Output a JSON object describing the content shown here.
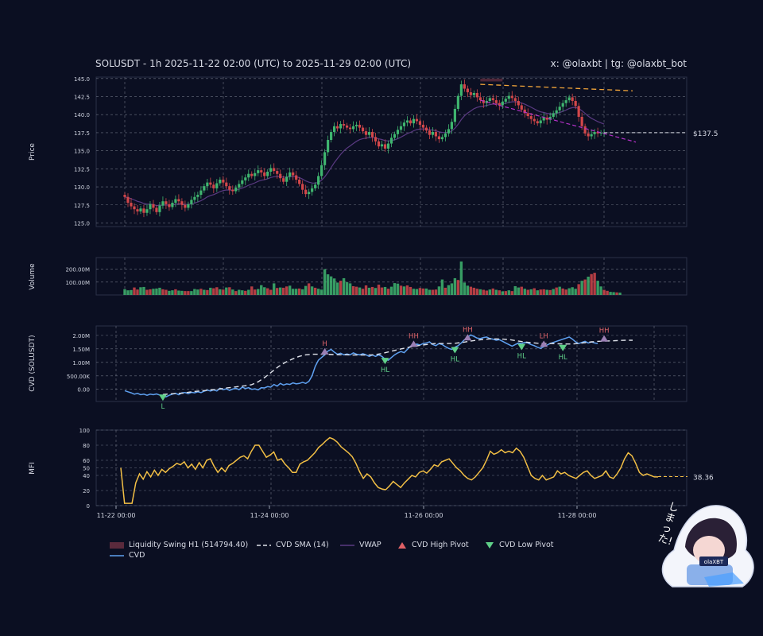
{
  "header": {
    "title": "SOLUSDT - 1h 2025-11-22 02:00 (UTC) to 2025-11-29 02:00 (UTC)",
    "handle": "x: @olaxbt | tg: @olaxbt_bot"
  },
  "colors": {
    "bg": "#0b0f22",
    "grid": "#6b7080",
    "up": "#3fb56f",
    "down": "#d2474a",
    "cvd": "#5ea0f0",
    "sma": "#dfe2ea",
    "vwap": "#5a3a82",
    "mfi": "#f2bf45",
    "resistance": "#f2a53a",
    "support": "#b431c8",
    "swing_zone": "#5a2a3c"
  },
  "chart_data": [
    {
      "type": "candlestick",
      "panel": "price",
      "ylabel": "Price",
      "ylim": [
        124.5,
        145.2
      ],
      "yticks": [
        "145.0",
        "142.5",
        "140.0",
        "137.5",
        "135.0",
        "132.5",
        "130.0",
        "127.5",
        "125.0"
      ],
      "last_price_label": "$137.5",
      "x_range_hours": [
        0,
        168
      ],
      "series_close": [
        128.6,
        127.8,
        127.3,
        126.9,
        126.6,
        127.0,
        126.4,
        126.9,
        127.6,
        127.1,
        126.5,
        127.4,
        128.0,
        127.6,
        127.2,
        127.8,
        128.3,
        128.0,
        127.5,
        127.1,
        127.6,
        128.2,
        128.6,
        128.9,
        129.5,
        130.1,
        130.6,
        130.3,
        129.8,
        130.5,
        131.0,
        130.6,
        130.1,
        129.6,
        129.4,
        129.9,
        130.4,
        130.9,
        131.3,
        131.8,
        131.5,
        131.9,
        132.3,
        132.0,
        131.5,
        132.1,
        132.6,
        132.2,
        131.8,
        131.2,
        130.7,
        131.4,
        132.0,
        131.6,
        131.0,
        130.4,
        129.6,
        129.0,
        129.3,
        129.8,
        130.3,
        131.5,
        133.0,
        134.8,
        136.5,
        137.6,
        138.4,
        138.1,
        138.7,
        138.5,
        138.2,
        138.0,
        138.4,
        138.6,
        138.2,
        137.7,
        137.2,
        137.6,
        136.9,
        136.3,
        135.6,
        135.9,
        135.3,
        136.0,
        136.8,
        137.3,
        137.9,
        138.4,
        138.9,
        139.2,
        138.8,
        139.4,
        139.1,
        138.6,
        138.2,
        137.8,
        137.2,
        137.6,
        137.0,
        136.6,
        136.9,
        137.4,
        138.0,
        139.0,
        140.8,
        142.6,
        144.2,
        143.6,
        143.1,
        142.7,
        143.0,
        142.4,
        142.0,
        141.6,
        141.9,
        142.3,
        142.0,
        141.6,
        141.3,
        141.8,
        142.2,
        142.6,
        142.3,
        141.9,
        141.3,
        140.7,
        140.2,
        139.8,
        139.4,
        139.1,
        138.8,
        139.2,
        139.6,
        139.3,
        139.7,
        140.2,
        140.6,
        141.1,
        141.6,
        142.0,
        142.4,
        141.9,
        141.2,
        139.7,
        138.4,
        137.4,
        137.0,
        137.3,
        137.6,
        137.4,
        137.5,
        137.5
      ],
      "annotations": {
        "resistance": {
          "start": [
            112,
            144.2
          ],
          "end": [
            160,
            143.3
          ]
        },
        "support": {
          "start": [
            112,
            142.0
          ],
          "end": [
            161,
            136.2
          ]
        },
        "swing_zone": {
          "x": [
            112,
            119
          ],
          "y": [
            144.6,
            145.0
          ]
        }
      }
    },
    {
      "type": "bar",
      "panel": "volume",
      "ylabel": "Volume",
      "yticks": [
        "200.00M",
        "100.00M"
      ],
      "ylim": [
        0,
        290
      ],
      "values_m": [
        45,
        36,
        38,
        58,
        42,
        60,
        62,
        40,
        44,
        48,
        50,
        56,
        44,
        40,
        32,
        36,
        44,
        34,
        32,
        30,
        30,
        30,
        46,
        42,
        48,
        40,
        38,
        56,
        52,
        60,
        44,
        42,
        58,
        60,
        42,
        30,
        40,
        36,
        32,
        40,
        66,
        42,
        46,
        76,
        60,
        52,
        40,
        90,
        54,
        58,
        56,
        66,
        72,
        48,
        48,
        50,
        44,
        70,
        90,
        66,
        56,
        48,
        42,
        200,
        160,
        144,
        128,
        96,
        110,
        130,
        100,
        90,
        68,
        64,
        58,
        48,
        74,
        56,
        62,
        54,
        80,
        58,
        62,
        48,
        64,
        92,
        88,
        72,
        66,
        74,
        62,
        48,
        46,
        54,
        50,
        50,
        40,
        40,
        42,
        66,
        120,
        56,
        76,
        90,
        130,
        116,
        260,
        96,
        72,
        64,
        56,
        48,
        44,
        40,
        34,
        42,
        50,
        40,
        36,
        28,
        30,
        36,
        30,
        68,
        58,
        64,
        48,
        40,
        44,
        52,
        36,
        42,
        44,
        40,
        38,
        46,
        58,
        64,
        50,
        42,
        52,
        60,
        48,
        84,
        110,
        120,
        142,
        162,
        172,
        110,
        66,
        40,
        32,
        24,
        22,
        20,
        18
      ],
      "directions": "gggrrggrrgggrrggrggrrgggrgrgrrgrgrgrggrgrrgggrrgrgrrgggrggrgrgggggggrgggrrgrrgrgrrgrgggrgrrggrrggrrggrgggrgggrrrgrrgrgrgrgrggrgrgrgrrgrgrgrrgggrgrgrrggrrggrgrgrrg"
    },
    {
      "type": "line",
      "panel": "cvd",
      "ylabel": "CVD (SOLUSDT)",
      "yticks": [
        "2.00M",
        "1.50M",
        "1.00M",
        "500.00K",
        "0.00"
      ],
      "ylim": [
        -0.45,
        2.35
      ],
      "series": [
        {
          "name": "CVD",
          "y": [
            -0.05,
            -0.09,
            -0.13,
            -0.18,
            -0.15,
            -0.2,
            -0.18,
            -0.22,
            -0.18,
            -0.2,
            -0.17,
            -0.21,
            -0.23,
            -0.28,
            -0.22,
            -0.18,
            -0.15,
            -0.2,
            -0.13,
            -0.12,
            -0.16,
            -0.11,
            -0.13,
            -0.09,
            -0.12,
            -0.07,
            -0.03,
            -0.06,
            -0.02,
            -0.06,
            0.04,
            -0.01,
            0.02,
            -0.04,
            0.01,
            0.04,
            -0.01,
            0.08,
            0.03,
            0.06,
            0.0,
            0.02,
            -0.02,
            0.06,
            0.05,
            0.1,
            0.08,
            0.18,
            0.12,
            0.22,
            0.16,
            0.2,
            0.18,
            0.24,
            0.2,
            0.22,
            0.26,
            0.22,
            0.3,
            0.5,
            0.85,
            1.08,
            1.18,
            1.28,
            1.42,
            1.48,
            1.38,
            1.3,
            1.34,
            1.28,
            1.31,
            1.28,
            1.35,
            1.3,
            1.28,
            1.32,
            1.28,
            1.22,
            1.27,
            1.22,
            1.28,
            1.22,
            1.12,
            1.08,
            1.18,
            1.28,
            1.35,
            1.4,
            1.36,
            1.48,
            1.6,
            1.62,
            1.68,
            1.64,
            1.7,
            1.72,
            1.76,
            1.66,
            1.62,
            1.7,
            1.66,
            1.58,
            1.52,
            1.48,
            1.56,
            1.62,
            1.72,
            1.84,
            1.93,
            2.02,
            1.96,
            1.9,
            1.88,
            1.92,
            1.94,
            1.88,
            1.86,
            1.82,
            1.84,
            1.78,
            1.72,
            1.66,
            1.6,
            1.66,
            1.72,
            1.7,
            1.74,
            1.72,
            1.66,
            1.62,
            1.56,
            1.52,
            1.58,
            1.64,
            1.7,
            1.74,
            1.78,
            1.82,
            1.86,
            1.9,
            1.94,
            1.86,
            1.76,
            1.7,
            1.74,
            1.78,
            1.72,
            1.76,
            1.72,
            1.7
          ]
        },
        {
          "name": "CVD SMA (14)",
          "y": [
            -0.19,
            -0.17,
            -0.15,
            -0.14,
            -0.1,
            -0.07,
            -0.05,
            -0.02,
            0.0,
            0.04,
            0.07,
            0.1,
            0.13,
            0.17,
            0.28,
            0.45,
            0.65,
            0.85,
            1.0,
            1.12,
            1.22,
            1.28,
            1.3,
            1.3,
            1.3,
            1.29,
            1.28,
            1.28,
            1.27,
            1.27,
            1.27,
            1.28,
            1.32,
            1.38,
            1.44,
            1.5,
            1.55,
            1.6,
            1.64,
            1.67,
            1.7,
            1.7,
            1.7,
            1.71,
            1.74,
            1.78,
            1.82,
            1.85,
            1.87,
            1.87,
            1.86,
            1.84,
            1.8,
            1.76,
            1.73,
            1.71,
            1.7,
            1.7,
            1.69,
            1.68,
            1.68,
            1.7,
            1.73,
            1.76,
            1.78,
            1.79,
            1.8,
            1.81,
            1.82,
            1.82
          ]
        },
        {
          "name": "CVD High Pivot",
          "points": [
            {
              "x": 63,
              "y": 1.38,
              "label": "H"
            },
            {
              "x": 91,
              "y": 1.66,
              "label": "HH"
            },
            {
              "x": 108,
              "y": 1.9,
              "label": "HH"
            },
            {
              "x": 132,
              "y": 1.66,
              "label": "LH"
            },
            {
              "x": 151,
              "y": 1.86,
              "label": "HH"
            }
          ]
        },
        {
          "name": "CVD Low Pivot",
          "points": [
            {
              "x": 12,
              "y": -0.28,
              "label": "L"
            },
            {
              "x": 82,
              "y": 1.08,
              "label": "HL"
            },
            {
              "x": 104,
              "y": 1.48,
              "label": "HL"
            },
            {
              "x": 125,
              "y": 1.6,
              "label": "HL"
            },
            {
              "x": 138,
              "y": 1.56,
              "label": "HL"
            }
          ]
        }
      ]
    },
    {
      "type": "line",
      "panel": "mfi",
      "ylabel": "MFI",
      "yticks": [
        "100",
        "80",
        "60",
        "50",
        "40",
        "20",
        "0"
      ],
      "ylim": [
        0,
        100
      ],
      "last_value_label": "38.36",
      "xticks": [
        "11-22 00:00",
        "11-24 00:00",
        "11-26 00:00",
        "11-28 00:00"
      ],
      "series": [
        {
          "name": "MFI",
          "y": [
            50,
            3,
            3,
            3,
            30,
            42,
            35,
            45,
            38,
            47,
            40,
            48,
            44,
            49,
            52,
            56,
            54,
            58,
            50,
            55,
            48,
            57,
            50,
            60,
            62,
            52,
            44,
            50,
            45,
            53,
            56,
            60,
            64,
            66,
            62,
            72,
            80,
            80,
            72,
            64,
            67,
            71,
            60,
            62,
            55,
            50,
            44,
            44,
            55,
            58,
            60,
            65,
            70,
            77,
            81,
            86,
            90,
            88,
            84,
            78,
            74,
            70,
            65,
            56,
            45,
            36,
            42,
            38,
            30,
            24,
            22,
            21,
            26,
            32,
            28,
            24,
            30,
            35,
            40,
            38,
            44,
            46,
            43,
            48,
            54,
            52,
            58,
            60,
            62,
            56,
            50,
            46,
            40,
            36,
            34,
            38,
            44,
            50,
            60,
            72,
            68,
            70,
            74,
            70,
            72,
            70,
            76,
            72,
            64,
            52,
            40,
            36,
            34,
            40,
            34,
            36,
            38,
            46,
            42,
            44,
            40,
            38,
            36,
            40,
            44,
            46,
            40,
            36,
            38,
            40,
            46,
            38,
            36,
            42,
            50,
            62,
            70,
            66,
            56,
            44,
            40,
            42,
            40,
            38,
            38
          ]
        }
      ]
    }
  ],
  "legend": {
    "items": [
      {
        "label": "Liquidity Swing H1 (514794.40)",
        "icon": "swatch"
      },
      {
        "label": "CVD",
        "icon": "line-solid"
      },
      {
        "label": "CVD SMA (14)",
        "icon": "line-dashed"
      },
      {
        "label": "VWAP",
        "icon": "line-vwap"
      },
      {
        "label": "CVD High Pivot",
        "icon": "triangle-up"
      },
      {
        "label": "CVD Low Pivot",
        "icon": "triangle-down"
      }
    ]
  },
  "mascot": {
    "text": "しまった!",
    "badge": "olaXBT"
  }
}
